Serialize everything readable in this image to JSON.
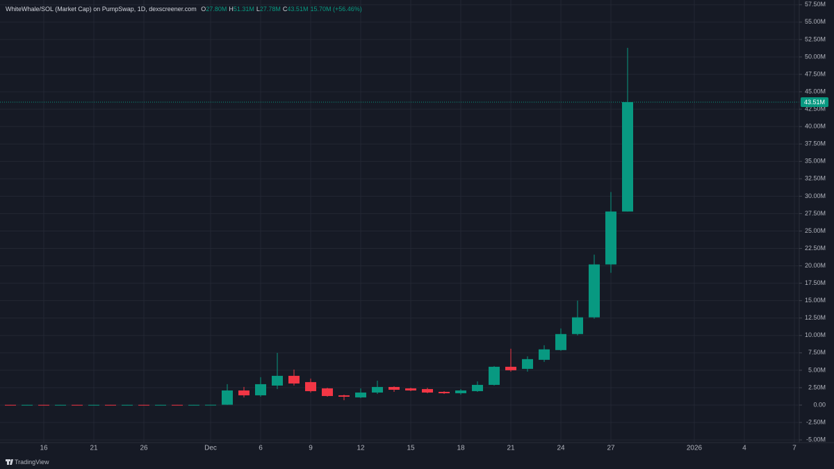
{
  "chart_data": {
    "type": "candlestick",
    "title": "WhiteWhale/SOL (Market Cap) on PumpSwap, 1D, dexscreener.com",
    "ohlc_legend": [
      {
        "label": "O",
        "value": "27.80M"
      },
      {
        "label": "H",
        "value": "51.31M"
      },
      {
        "label": "L",
        "value": "27.78M"
      },
      {
        "label": "C",
        "value": "43.51M"
      }
    ],
    "change": "15.70M (+56.46%)",
    "last_value_label": "43.51M",
    "footer": "TradingView",
    "up_color": "#089981",
    "down_color": "#f23645",
    "background": "#161a25",
    "grid": true,
    "categories": [
      null,
      null,
      "16",
      null,
      null,
      "21",
      null,
      null,
      "26",
      null,
      null,
      null,
      "Dec",
      null,
      null,
      "6",
      null,
      null,
      "9",
      null,
      null,
      "12",
      null,
      null,
      "15",
      null,
      null,
      "18",
      null,
      null,
      "21",
      null,
      null,
      "24",
      null,
      null,
      "27",
      null,
      null,
      null,
      null,
      "2026",
      null,
      null,
      "4",
      null,
      null,
      "7"
    ],
    "open": [
      0.03,
      0.02,
      0.03,
      0.02,
      0.03,
      0.02,
      0.03,
      0.02,
      0.03,
      0.02,
      0.03,
      0.02,
      0.03,
      0.05,
      2.1,
      1.4,
      2.8,
      4.2,
      3.3,
      2.4,
      1.4,
      1.1,
      1.8,
      2.6,
      2.4,
      2.3,
      1.9,
      1.7,
      2.0,
      2.9,
      5.5,
      5.2,
      6.5,
      7.9,
      10.2,
      12.6,
      20.2,
      27.8,
      null,
      null,
      null,
      null,
      null,
      null,
      null,
      null,
      null,
      null
    ],
    "high": [
      0.04,
      0.04,
      0.04,
      0.04,
      0.04,
      0.04,
      0.04,
      0.04,
      0.04,
      0.04,
      0.04,
      0.04,
      0.04,
      3.0,
      2.6,
      4.0,
      7.5,
      5.1,
      3.8,
      2.5,
      1.5,
      2.4,
      3.5,
      2.7,
      2.5,
      2.5,
      2.0,
      2.3,
      3.4,
      5.6,
      8.1,
      7.0,
      8.6,
      11.0,
      15.0,
      21.6,
      30.6,
      51.31,
      null,
      null,
      null,
      null,
      null,
      null,
      null,
      null,
      null,
      null
    ],
    "low": [
      0.01,
      0.01,
      0.01,
      0.01,
      0.01,
      0.01,
      0.01,
      0.01,
      0.01,
      0.01,
      0.01,
      0.01,
      0.01,
      0.02,
      1.1,
      1.2,
      2.3,
      2.8,
      1.8,
      1.2,
      0.7,
      1.0,
      1.6,
      1.9,
      2.0,
      1.7,
      1.6,
      1.5,
      1.9,
      2.8,
      4.8,
      4.8,
      6.2,
      7.8,
      10.0,
      12.4,
      19.0,
      27.78,
      null,
      null,
      null,
      null,
      null,
      null,
      null,
      null,
      null,
      null
    ],
    "close": [
      0.02,
      0.03,
      0.02,
      0.03,
      0.02,
      0.03,
      0.02,
      0.03,
      0.02,
      0.03,
      0.02,
      0.03,
      0.04,
      2.1,
      1.4,
      3.0,
      4.2,
      3.1,
      2.0,
      1.3,
      1.2,
      1.8,
      2.6,
      2.2,
      2.1,
      1.8,
      1.7,
      2.1,
      2.9,
      5.5,
      5.0,
      6.6,
      8.0,
      10.2,
      12.6,
      20.2,
      27.8,
      43.51,
      null,
      null,
      null,
      null,
      null,
      null,
      null,
      null,
      null,
      null
    ],
    "ylim": [
      -5.39,
      58.18
    ],
    "yticks": [
      {
        "value": -5,
        "label": "-5.00M"
      },
      {
        "value": -2.5,
        "label": "-2.50M"
      },
      {
        "value": 0,
        "label": "0.00"
      },
      {
        "value": 2.5,
        "label": "2.50M"
      },
      {
        "value": 5,
        "label": "5.00M"
      },
      {
        "value": 7.5,
        "label": "7.50M"
      },
      {
        "value": 10,
        "label": "10.00M"
      },
      {
        "value": 12.5,
        "label": "12.50M"
      },
      {
        "value": 15,
        "label": "15.00M"
      },
      {
        "value": 17.5,
        "label": "17.50M"
      },
      {
        "value": 20,
        "label": "20.00M"
      },
      {
        "value": 22.5,
        "label": "22.50M"
      },
      {
        "value": 25,
        "label": "25.00M"
      },
      {
        "value": 27.5,
        "label": "27.50M"
      },
      {
        "value": 30,
        "label": "30.00M"
      },
      {
        "value": 32.5,
        "label": "32.50M"
      },
      {
        "value": 35,
        "label": "35.00M"
      },
      {
        "value": 37.5,
        "label": "37.50M"
      },
      {
        "value": 40,
        "label": "40.00M"
      },
      {
        "value": 42.5,
        "label": "42.50M"
      },
      {
        "value": 45,
        "label": "45.00M"
      },
      {
        "value": 47.5,
        "label": "47.50M"
      },
      {
        "value": 50,
        "label": "50.00M"
      },
      {
        "value": 52.5,
        "label": "52.50M"
      },
      {
        "value": 55,
        "label": "55.00M"
      },
      {
        "value": 57.5,
        "label": "57.50M"
      }
    ]
  }
}
